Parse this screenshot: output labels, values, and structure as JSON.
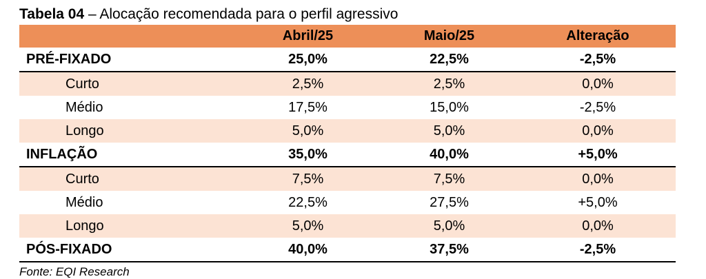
{
  "caption": {
    "bold": "Tabela 04",
    "rest": " – Alocação recomendada para o perfil agressivo"
  },
  "columns": [
    "",
    "Abril/25",
    "Maio/25",
    "Alteração"
  ],
  "rows": [
    {
      "kind": "main",
      "label": "PRÉ-FIXADO",
      "values": [
        "25,0%",
        "22,5%",
        "-2,5%"
      ]
    },
    {
      "kind": "sub",
      "label": "Curto",
      "values": [
        "2,5%",
        "2,5%",
        "0,0%"
      ]
    },
    {
      "kind": "sub",
      "label": "Médio",
      "values": [
        "17,5%",
        "15,0%",
        "-2,5%"
      ]
    },
    {
      "kind": "sub",
      "label": "Longo",
      "values": [
        "5,0%",
        "5,0%",
        "0,0%"
      ]
    },
    {
      "kind": "main",
      "label": "INFLAÇÃO",
      "values": [
        "35,0%",
        "40,0%",
        "+5,0%"
      ]
    },
    {
      "kind": "sub",
      "label": "Curto",
      "values": [
        "7,5%",
        "7,5%",
        "0,0%"
      ]
    },
    {
      "kind": "sub",
      "label": "Médio",
      "values": [
        "22,5%",
        "27,5%",
        "+5,0%"
      ]
    },
    {
      "kind": "sub",
      "label": "Longo",
      "values": [
        "5,0%",
        "5,0%",
        "0,0%"
      ]
    },
    {
      "kind": "main",
      "label": "PÓS-FIXADO",
      "values": [
        "40,0%",
        "37,5%",
        "-2,5%"
      ]
    }
  ],
  "source": "Fonte: EQI Research",
  "colors": {
    "header": "#ed8f58",
    "shade": "#fce3d4",
    "rule": "#000000"
  }
}
